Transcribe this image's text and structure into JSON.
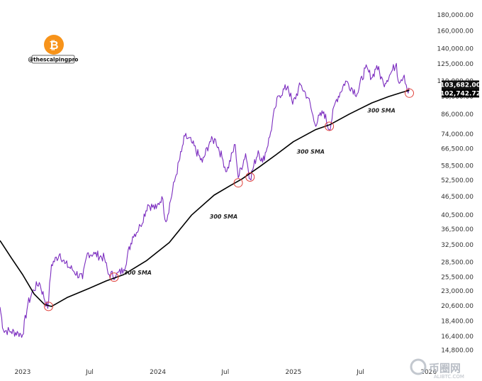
{
  "chart_data": {
    "type": "line",
    "title": "",
    "x_ticks": [
      "2023",
      "Jul",
      "2024",
      "Jul",
      "2025",
      "Jul",
      "2026"
    ],
    "y_ticks": [
      "180,000.00",
      "160,000.00",
      "140,000.00",
      "125,000.00",
      "110,000.00",
      "98,000.00",
      "86,000.00",
      "74,000.00",
      "66,500.00",
      "58,500.00",
      "52,500.00",
      "46,500.00",
      "40,500.00",
      "36,500.00",
      "32,500.00",
      "28,500.00",
      "25,500.00",
      "23,000.00",
      "20,600.00",
      "18,400.00",
      "16,400.00",
      "14,800.00"
    ],
    "y_scale": "log",
    "ylim": [
      14000,
      195000
    ],
    "xlim": [
      "2022-11-01",
      "2026-01-15"
    ],
    "grid": false,
    "series": [
      {
        "color": "#7b2cbf",
        "points": [
          [
            "2022-11-01",
            20400
          ],
          [
            "2022-11-10",
            17200
          ],
          [
            "2022-12-01",
            17000
          ],
          [
            "2022-12-20",
            16800
          ],
          [
            "2023-01-01",
            16600
          ],
          [
            "2023-01-15",
            20800
          ],
          [
            "2023-01-30",
            23200
          ],
          [
            "2023-02-15",
            24500
          ],
          [
            "2023-03-10",
            20200
          ],
          [
            "2023-03-20",
            28000
          ],
          [
            "2023-04-12",
            30400
          ],
          [
            "2023-04-25",
            28200
          ],
          [
            "2023-05-15",
            27000
          ],
          [
            "2023-06-12",
            25200
          ],
          [
            "2023-06-25",
            30500
          ],
          [
            "2023-07-15",
            30300
          ],
          [
            "2023-08-10",
            29400
          ],
          [
            "2023-08-20",
            26100
          ],
          [
            "2023-09-10",
            25800
          ],
          [
            "2023-10-01",
            27000
          ],
          [
            "2023-10-25",
            34500
          ],
          [
            "2023-11-15",
            37400
          ],
          [
            "2023-12-05",
            43800
          ],
          [
            "2023-12-28",
            42500
          ],
          [
            "2024-01-12",
            46500
          ],
          [
            "2024-01-23",
            38500
          ],
          [
            "2024-02-15",
            52000
          ],
          [
            "2024-03-05",
            65000
          ],
          [
            "2024-03-14",
            73000
          ],
          [
            "2024-04-01",
            69800
          ],
          [
            "2024-04-30",
            60000
          ],
          [
            "2024-05-20",
            70000
          ],
          [
            "2024-06-05",
            71000
          ],
          [
            "2024-06-25",
            61000
          ],
          [
            "2024-07-05",
            56000
          ],
          [
            "2024-07-28",
            68500
          ],
          [
            "2024-08-05",
            53500
          ],
          [
            "2024-08-25",
            64000
          ],
          [
            "2024-09-06",
            53000
          ],
          [
            "2024-09-28",
            65500
          ],
          [
            "2024-10-10",
            60000
          ],
          [
            "2024-10-29",
            72500
          ],
          [
            "2024-11-13",
            90000
          ],
          [
            "2024-11-22",
            98500
          ],
          [
            "2024-12-17",
            106000
          ],
          [
            "2024-12-30",
            92500
          ],
          [
            "2025-01-20",
            107000
          ],
          [
            "2025-02-10",
            97000
          ],
          [
            "2025-02-28",
            80000
          ],
          [
            "2025-03-24",
            87500
          ],
          [
            "2025-04-08",
            76500
          ],
          [
            "2025-04-25",
            94500
          ],
          [
            "2025-05-22",
            110000
          ],
          [
            "2025-06-22",
            100000
          ],
          [
            "2025-07-14",
            121000
          ],
          [
            "2025-08-02",
            113000
          ],
          [
            "2025-08-14",
            123500
          ],
          [
            "2025-09-01",
            108000
          ],
          [
            "2025-09-20",
            116000
          ],
          [
            "2025-10-06",
            125500
          ],
          [
            "2025-10-11",
            110000
          ],
          [
            "2025-10-27",
            115000
          ],
          [
            "2025-11-07",
            100500
          ],
          [
            "2025-11-10",
            103682
          ]
        ]
      },
      {
        "name": "300 SMA",
        "color": "#000000",
        "points": [
          [
            "2022-11-01",
            33500
          ],
          [
            "2022-12-01",
            29500
          ],
          [
            "2023-01-01",
            26000
          ],
          [
            "2023-02-01",
            22500
          ],
          [
            "2023-03-01",
            20800
          ],
          [
            "2023-03-20",
            20500
          ],
          [
            "2023-05-01",
            21900
          ],
          [
            "2023-07-01",
            23500
          ],
          [
            "2023-08-15",
            24800
          ],
          [
            "2023-10-01",
            26000
          ],
          [
            "2023-12-01",
            28800
          ],
          [
            "2024-02-01",
            33000
          ],
          [
            "2024-04-01",
            40500
          ],
          [
            "2024-06-01",
            47000
          ],
          [
            "2024-07-15",
            50500
          ],
          [
            "2024-08-15",
            53000
          ],
          [
            "2024-10-01",
            58000
          ],
          [
            "2024-11-15",
            63500
          ],
          [
            "2025-01-01",
            70000
          ],
          [
            "2025-03-01",
            76500
          ],
          [
            "2025-04-10",
            79500
          ],
          [
            "2025-06-01",
            86000
          ],
          [
            "2025-08-01",
            93500
          ],
          [
            "2025-09-15",
            98000
          ],
          [
            "2025-10-20",
            101000
          ],
          [
            "2025-11-10",
            102742.72
          ]
        ]
      }
    ],
    "annotations": [
      {
        "text": "300 SMA",
        "x": "2023-10-01",
        "y": 26000
      },
      {
        "text": "300 SMA",
        "x": "2024-05-20",
        "y": 39500
      },
      {
        "text": "300 SMA",
        "x": "2025-01-10",
        "y": 64000
      },
      {
        "text": "300 SMA",
        "x": "2025-07-20",
        "y": 87000
      }
    ],
    "touch_points": [
      {
        "x": "2023-03-12",
        "y": 20500
      },
      {
        "x": "2023-09-05",
        "y": 25500
      },
      {
        "x": "2024-08-05",
        "y": 51500
      },
      {
        "x": "2024-09-06",
        "y": 53800
      },
      {
        "x": "2025-04-08",
        "y": 78500
      },
      {
        "x": "2025-11-10",
        "y": 100500
      }
    ],
    "price_tags": [
      {
        "value": "103,682.00",
        "price": 103682,
        "color": "#111111"
      },
      {
        "value": "102,742.72",
        "price": 102742.72,
        "color": "#000000"
      }
    ]
  },
  "branding": {
    "handle": "@thescalpingpro",
    "logo_icon": "bitcoin-icon",
    "logo_color": "#f7931a",
    "watermark": "币圈网",
    "watermark_sub": "ALIBTC.COM"
  }
}
